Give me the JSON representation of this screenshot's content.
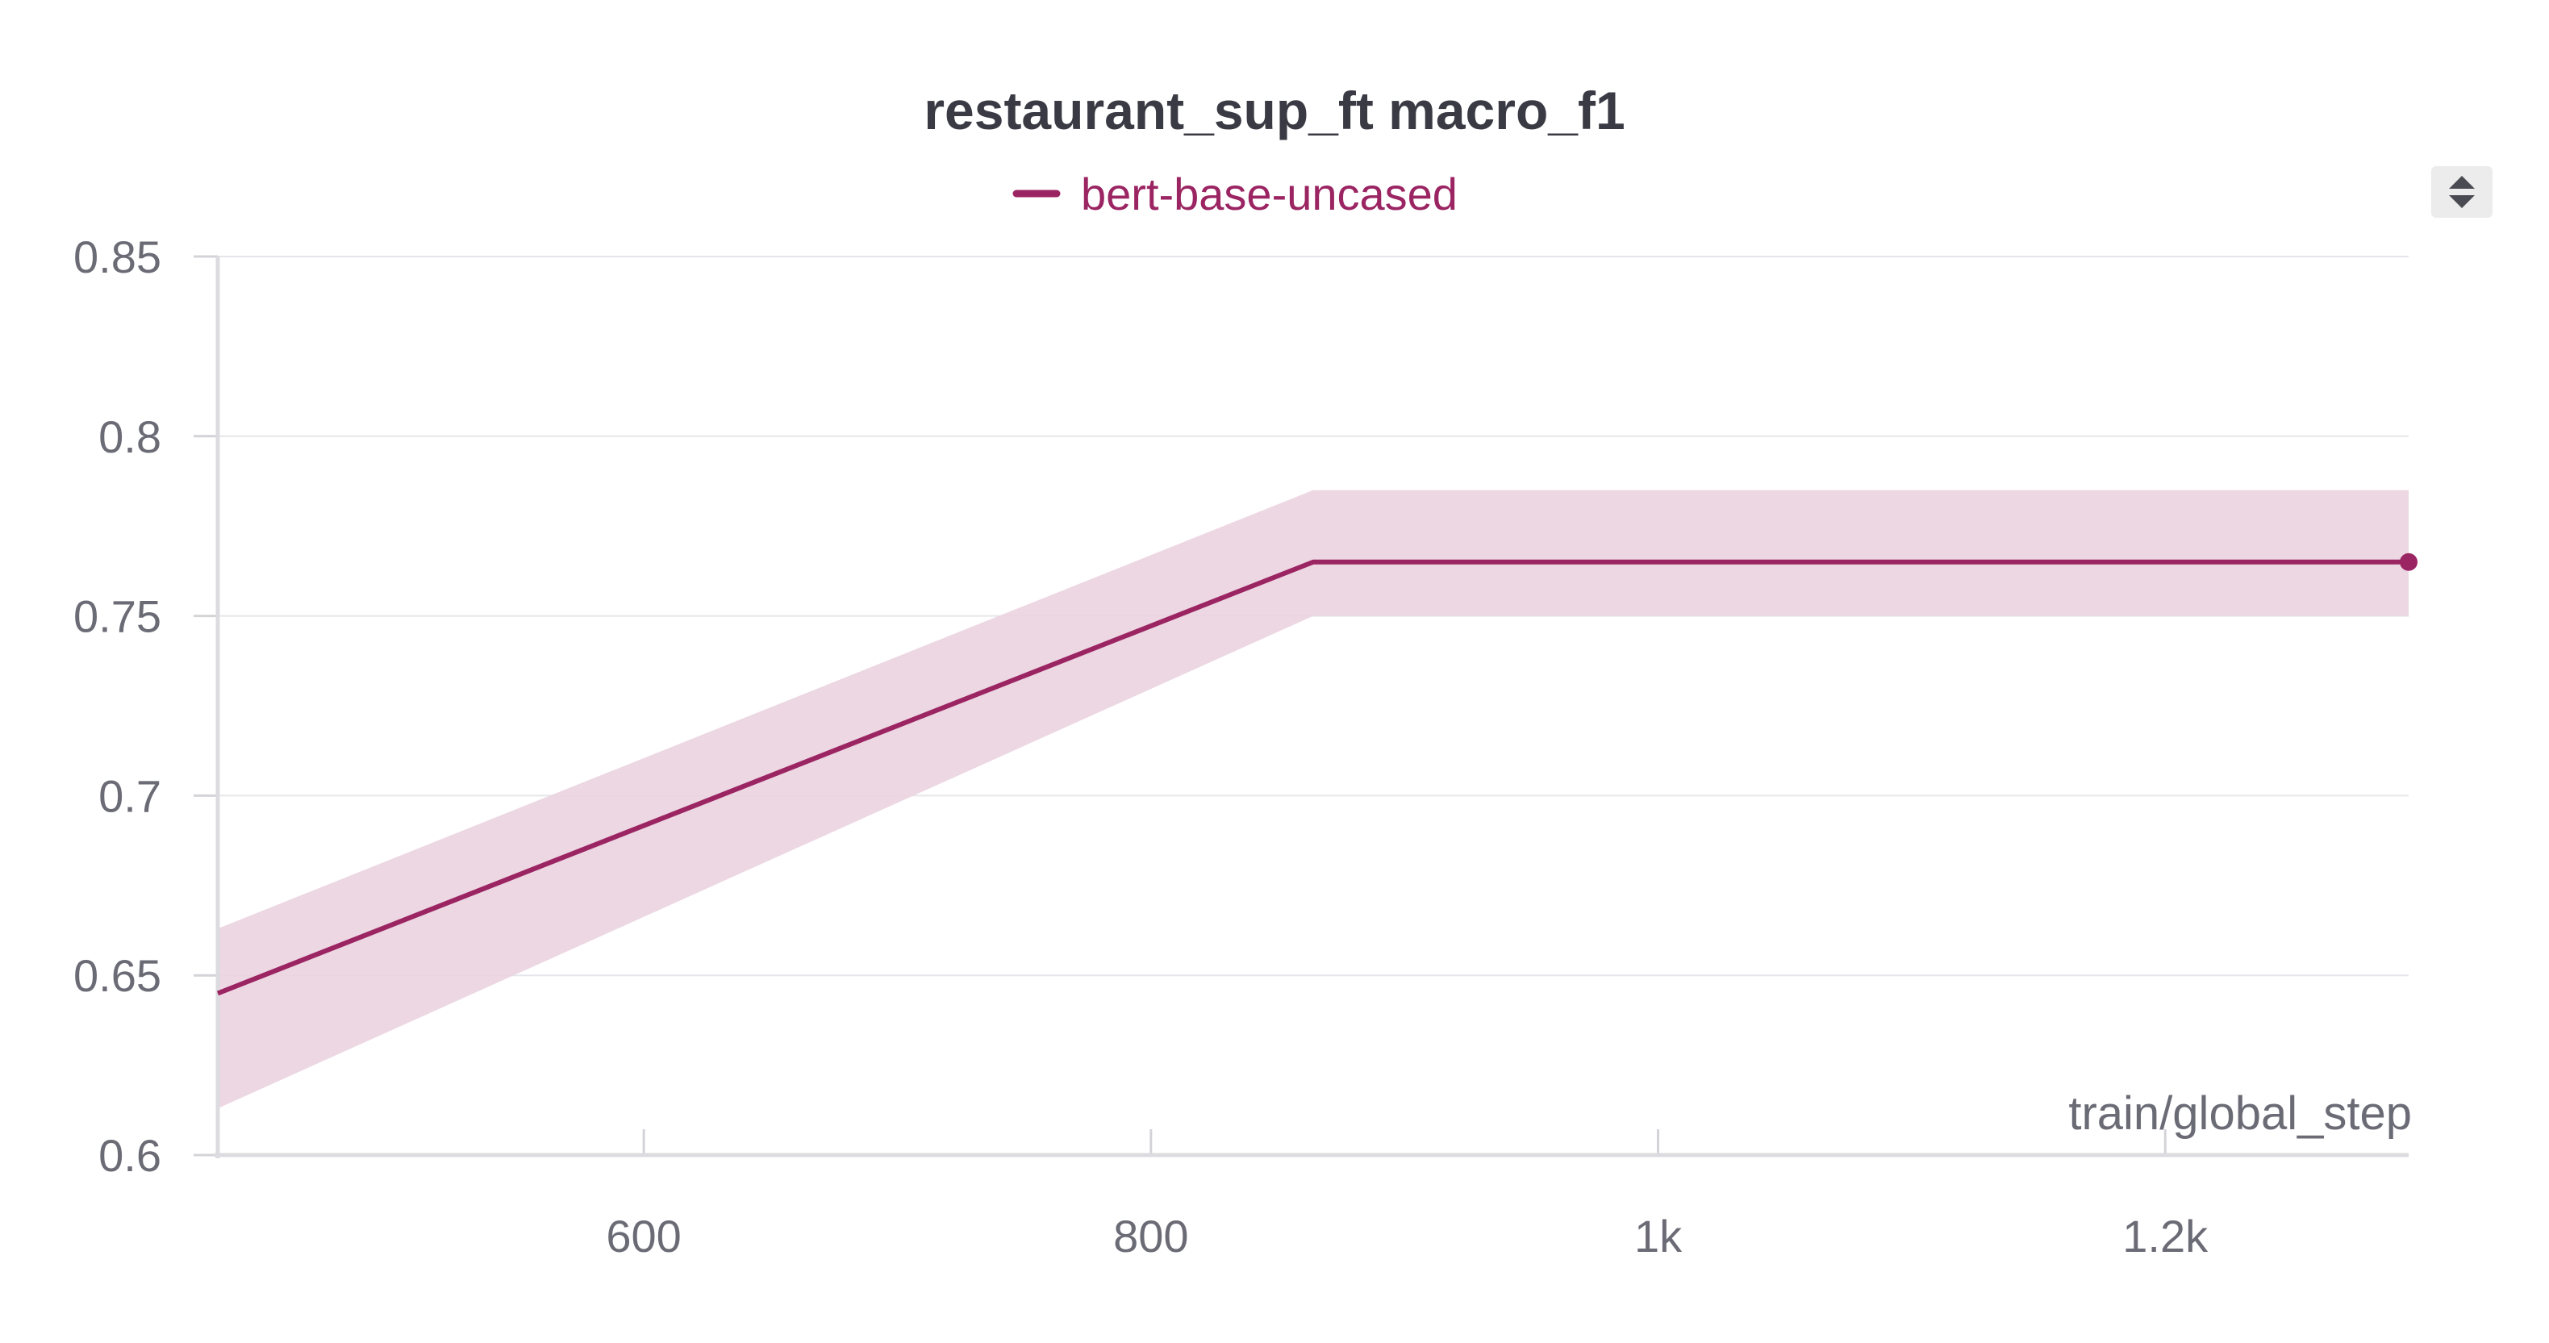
{
  "chart_data": {
    "type": "line",
    "title": "restaurant_sup_ft macro_f1",
    "xlabel": "train/global_step",
    "ylabel": "",
    "xlim": [
      432,
      1296
    ],
    "ylim": [
      0.6,
      0.85
    ],
    "x_ticks": [
      {
        "value": 600,
        "label": "600"
      },
      {
        "value": 800,
        "label": "800"
      },
      {
        "value": 1000,
        "label": "1k"
      },
      {
        "value": 1200,
        "label": "1.2k"
      }
    ],
    "y_ticks": [
      {
        "value": 0.6,
        "label": "0.6"
      },
      {
        "value": 0.65,
        "label": "0.65"
      },
      {
        "value": 0.7,
        "label": "0.7"
      },
      {
        "value": 0.75,
        "label": "0.75"
      },
      {
        "value": 0.8,
        "label": "0.8"
      },
      {
        "value": 0.85,
        "label": "0.85"
      }
    ],
    "grid": true,
    "legend_position": "top-center",
    "series": [
      {
        "name": "bert-base-uncased",
        "color": "#9b2462",
        "band_color": "#ead3df",
        "x": [
          432,
          864,
          1296
        ],
        "y": [
          0.645,
          0.765,
          0.765
        ],
        "y_min": [
          0.613,
          0.75,
          0.75
        ],
        "y_max": [
          0.663,
          0.785,
          0.785
        ]
      }
    ]
  },
  "toolbar": {
    "sort_icon": "sort-arrows-icon"
  }
}
